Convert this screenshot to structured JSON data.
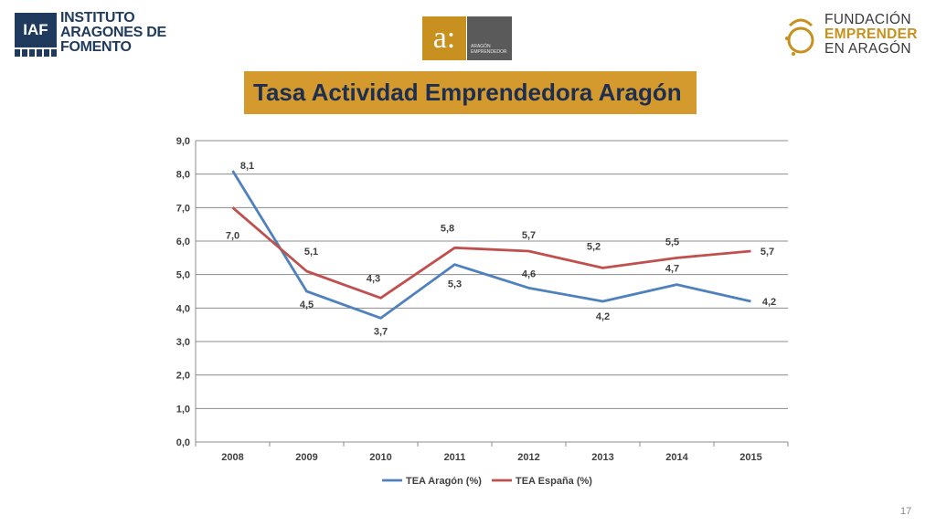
{
  "logos": {
    "iaf": {
      "abbr": "IAF",
      "lines": [
        "INSTITUTO",
        "ARAGONES DE",
        "FOMENTO"
      ]
    },
    "aragon_emprendedor": {
      "mark": "a:",
      "lines": [
        "ARAGÓN",
        "EMPRENDEDOR"
      ]
    },
    "fundacion": {
      "lines": [
        "FUNDACIÓN",
        "EMPRENDER",
        "EN ARAGÓN"
      ]
    }
  },
  "page_number": "17",
  "colors": {
    "title_background": "#d49a2e",
    "title_text": "#1e2e50",
    "series_aragon": "#4f81bd",
    "series_espana": "#c0504d"
  },
  "chart_data": {
    "type": "line",
    "title": "Tasa Actividad Emprendedora Aragón",
    "categories": [
      "2008",
      "2009",
      "2010",
      "2011",
      "2012",
      "2013",
      "2014",
      "2015"
    ],
    "series": [
      {
        "name": "TEA Aragón (%)",
        "values": [
          8.1,
          4.5,
          3.7,
          5.3,
          4.6,
          4.2,
          4.7,
          4.2
        ],
        "labels": [
          "8,1",
          "4,5",
          "3,7",
          "5,3",
          "4,6",
          "4,2",
          "4,7",
          "4,2"
        ]
      },
      {
        "name": "TEA España (%)",
        "values": [
          7.0,
          5.1,
          4.3,
          5.8,
          5.7,
          5.2,
          5.5,
          5.7
        ],
        "labels": [
          "7,0",
          "5,1",
          "4,3",
          "5,8",
          "5,7",
          "5,2",
          "5,5",
          "5,7"
        ]
      }
    ],
    "ylim": [
      0,
      9
    ],
    "yticks": [
      "0,0",
      "1,0",
      "2,0",
      "3,0",
      "4,0",
      "5,0",
      "6,0",
      "7,0",
      "8,0",
      "9,0"
    ],
    "xlabel": "",
    "ylabel": "",
    "grid": true,
    "legend": "bottom"
  }
}
